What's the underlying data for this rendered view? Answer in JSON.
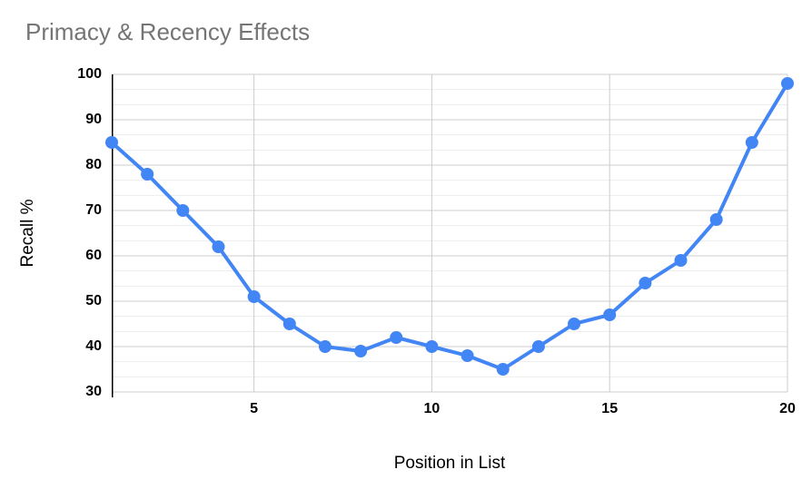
{
  "title": "Primacy & Recency Effects",
  "colors": {
    "series": "#4285f4",
    "title_text": "#757575",
    "axis_text": "#000000",
    "axis_line": "#000000",
    "major_gridline": "#cccccc",
    "minor_gridline": "#ededed",
    "background": "#ffffff"
  },
  "chart_data": {
    "type": "line",
    "title": "Primacy & Recency Effects",
    "xlabel": "Position in List",
    "ylabel": "Recall %",
    "x": [
      1,
      2,
      3,
      4,
      5,
      6,
      7,
      8,
      9,
      10,
      11,
      12,
      13,
      14,
      15,
      16,
      17,
      18,
      19,
      20
    ],
    "values": [
      85,
      78,
      70,
      62,
      51,
      45,
      40,
      39,
      42,
      40,
      38,
      35,
      40,
      45,
      47,
      54,
      59,
      68,
      85,
      98
    ],
    "xlim": [
      1,
      20
    ],
    "ylim": [
      30,
      100
    ],
    "x_ticks": [
      5,
      10,
      15,
      20
    ],
    "y_ticks": [
      100,
      90,
      80,
      70,
      60,
      50,
      40,
      30
    ],
    "minor_gridlines_between_majors": 2,
    "grid": "horizontal major+minor, vertical major only",
    "legend": "none",
    "marker": "circle"
  }
}
